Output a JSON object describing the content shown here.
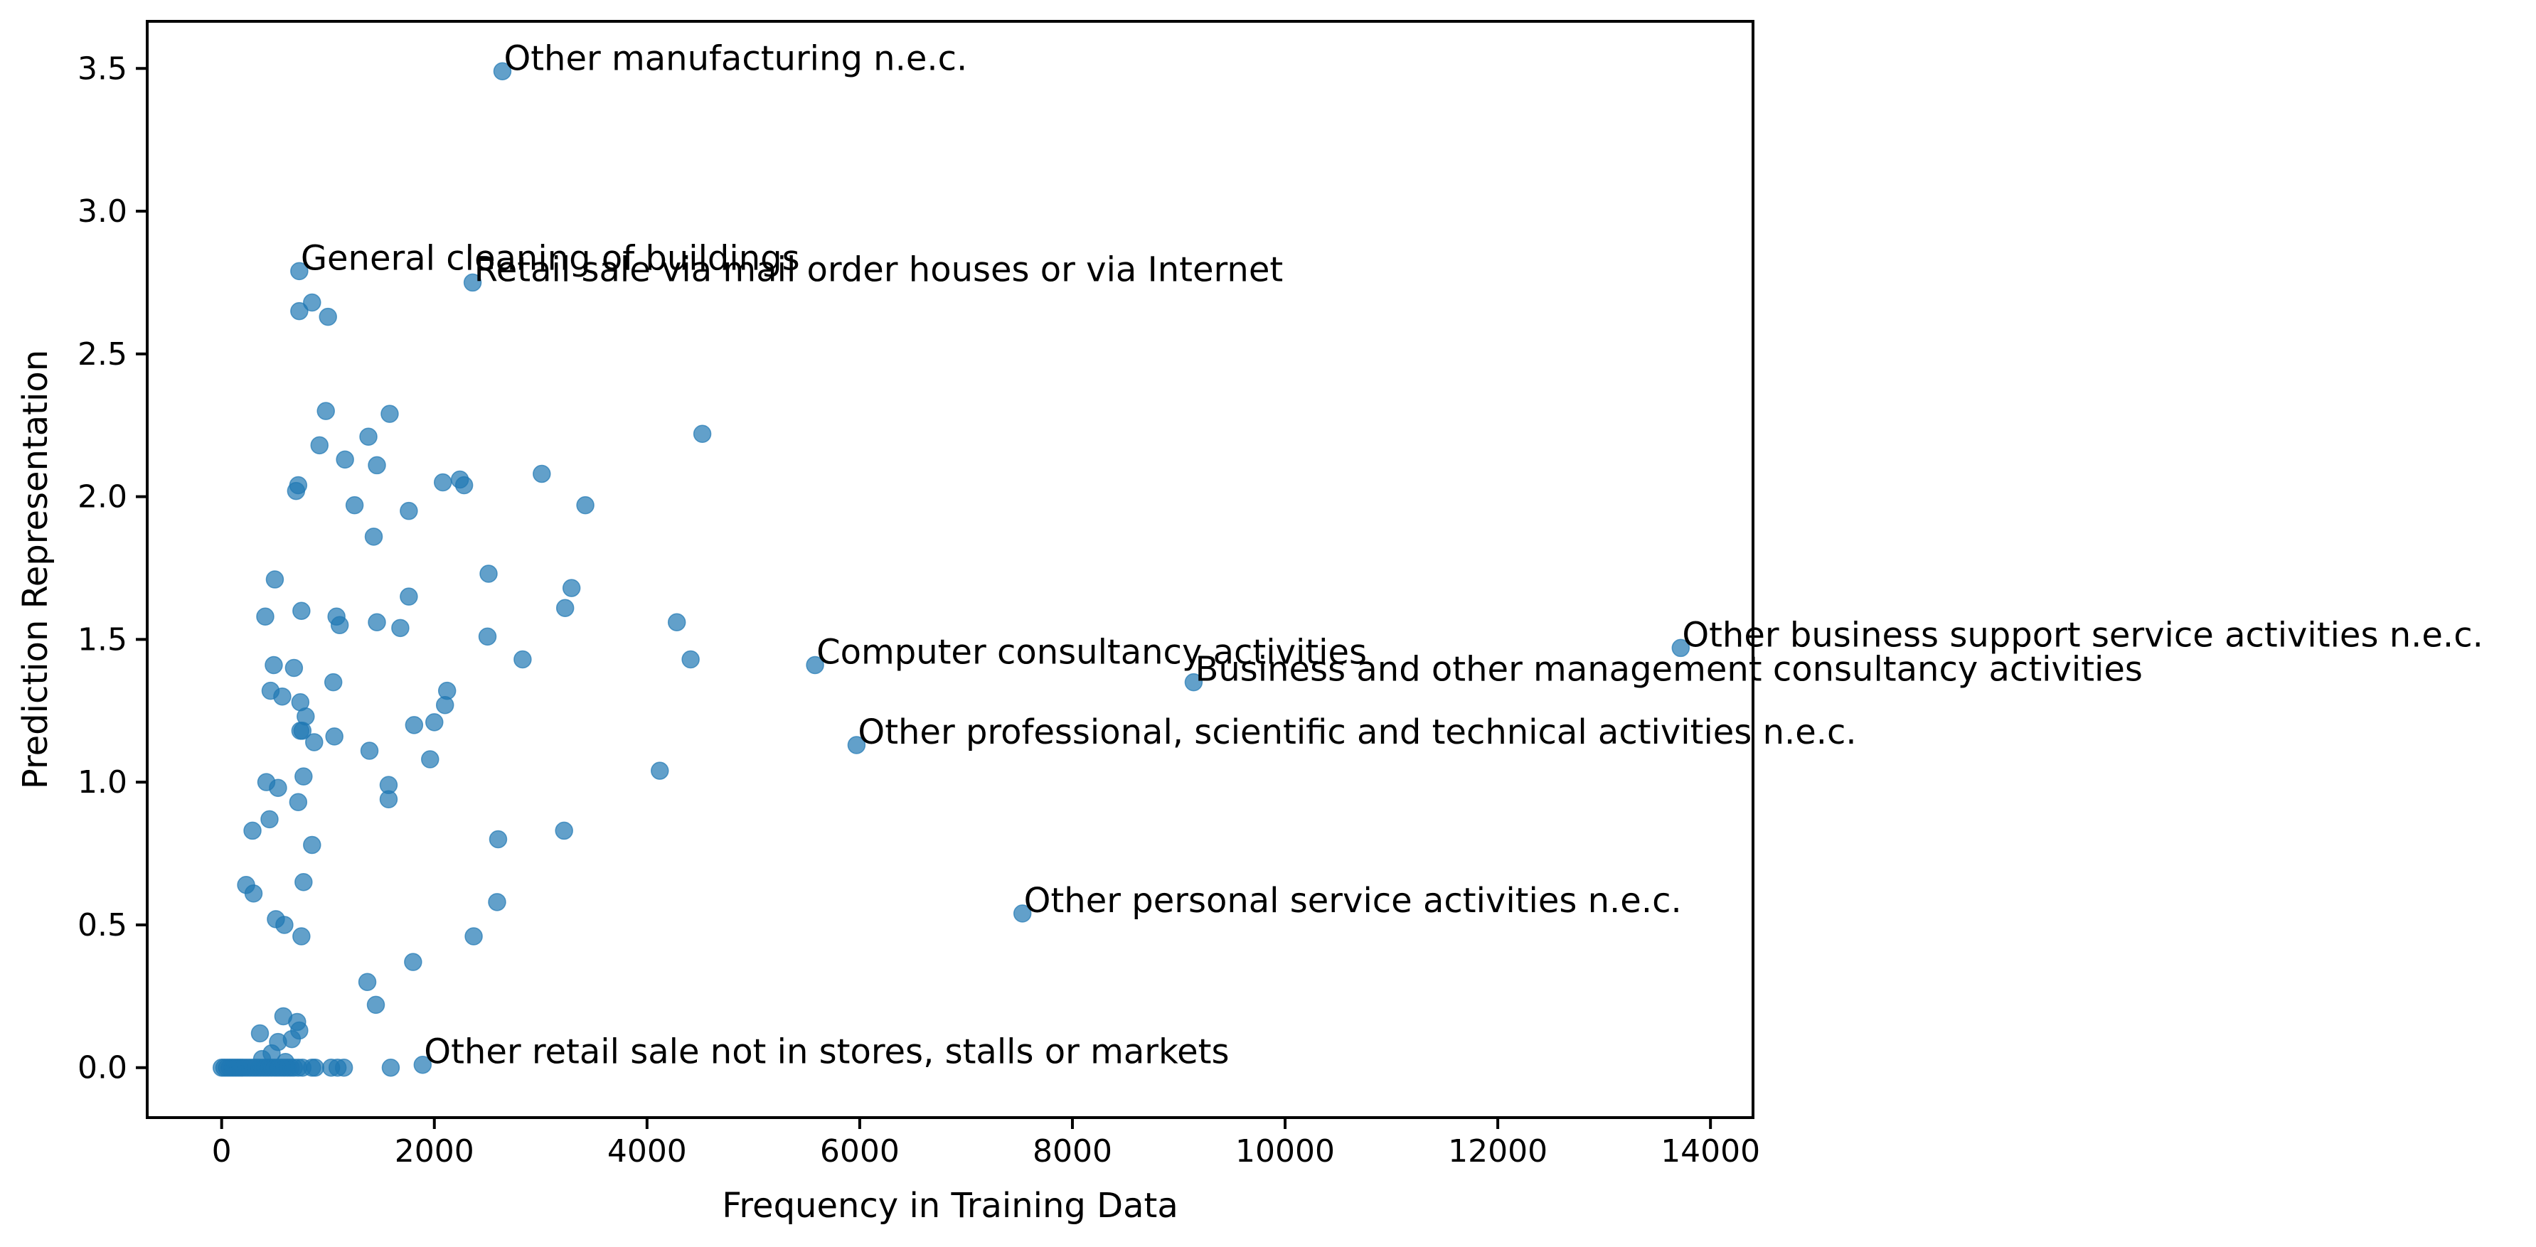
{
  "chart_data": {
    "type": "scatter",
    "title": "",
    "xlabel": "Frequency in Training Data",
    "ylabel": "Prediction Representation",
    "xlim": [
      -700,
      14400
    ],
    "ylim": [
      -0.175,
      3.665
    ],
    "xticks": [
      0,
      2000,
      4000,
      6000,
      8000,
      10000,
      12000,
      14000
    ],
    "yticks": [
      0.0,
      0.5,
      1.0,
      1.5,
      2.0,
      2.5,
      3.0,
      3.5
    ],
    "xtick_labels": [
      "0",
      "2000",
      "4000",
      "6000",
      "8000",
      "10000",
      "12000",
      "14000"
    ],
    "ytick_labels": [
      "0.0",
      "0.5",
      "1.0",
      "1.5",
      "2.0",
      "2.5",
      "3.0",
      "3.5"
    ],
    "grid": false,
    "point_color": "#1f77b4",
    "point_alpha": 0.7,
    "points": [
      {
        "x": 2640,
        "y": 3.49
      },
      {
        "x": 730,
        "y": 2.79
      },
      {
        "x": 2360,
        "y": 2.75
      },
      {
        "x": 850,
        "y": 2.68
      },
      {
        "x": 730,
        "y": 2.65
      },
      {
        "x": 1000,
        "y": 2.63
      },
      {
        "x": 980,
        "y": 2.3
      },
      {
        "x": 1580,
        "y": 2.29
      },
      {
        "x": 4520,
        "y": 2.22
      },
      {
        "x": 1380,
        "y": 2.21
      },
      {
        "x": 920,
        "y": 2.18
      },
      {
        "x": 1160,
        "y": 2.13
      },
      {
        "x": 1460,
        "y": 2.11
      },
      {
        "x": 3010,
        "y": 2.08
      },
      {
        "x": 2080,
        "y": 2.05
      },
      {
        "x": 2240,
        "y": 2.06
      },
      {
        "x": 2280,
        "y": 2.04
      },
      {
        "x": 720,
        "y": 2.04
      },
      {
        "x": 700,
        "y": 2.02
      },
      {
        "x": 1250,
        "y": 1.97
      },
      {
        "x": 3420,
        "y": 1.97
      },
      {
        "x": 1760,
        "y": 1.95
      },
      {
        "x": 1430,
        "y": 1.86
      },
      {
        "x": 2510,
        "y": 1.73
      },
      {
        "x": 500,
        "y": 1.71
      },
      {
        "x": 3290,
        "y": 1.68
      },
      {
        "x": 1760,
        "y": 1.65
      },
      {
        "x": 3230,
        "y": 1.61
      },
      {
        "x": 750,
        "y": 1.6
      },
      {
        "x": 410,
        "y": 1.58
      },
      {
        "x": 1080,
        "y": 1.58
      },
      {
        "x": 1460,
        "y": 1.56
      },
      {
        "x": 4280,
        "y": 1.56
      },
      {
        "x": 1680,
        "y": 1.54
      },
      {
        "x": 1110,
        "y": 1.55
      },
      {
        "x": 2500,
        "y": 1.51
      },
      {
        "x": 13720,
        "y": 1.47
      },
      {
        "x": 2830,
        "y": 1.43
      },
      {
        "x": 4410,
        "y": 1.43
      },
      {
        "x": 5580,
        "y": 1.41
      },
      {
        "x": 490,
        "y": 1.41
      },
      {
        "x": 680,
        "y": 1.4
      },
      {
        "x": 9140,
        "y": 1.35
      },
      {
        "x": 1050,
        "y": 1.35
      },
      {
        "x": 2120,
        "y": 1.32
      },
      {
        "x": 460,
        "y": 1.32
      },
      {
        "x": 570,
        "y": 1.3
      },
      {
        "x": 740,
        "y": 1.28
      },
      {
        "x": 2100,
        "y": 1.27
      },
      {
        "x": 790,
        "y": 1.23
      },
      {
        "x": 1810,
        "y": 1.2
      },
      {
        "x": 2000,
        "y": 1.21
      },
      {
        "x": 740,
        "y": 1.18
      },
      {
        "x": 760,
        "y": 1.18
      },
      {
        "x": 1060,
        "y": 1.16
      },
      {
        "x": 870,
        "y": 1.14
      },
      {
        "x": 5970,
        "y": 1.13
      },
      {
        "x": 1390,
        "y": 1.11
      },
      {
        "x": 1960,
        "y": 1.08
      },
      {
        "x": 4120,
        "y": 1.04
      },
      {
        "x": 770,
        "y": 1.02
      },
      {
        "x": 420,
        "y": 1.0
      },
      {
        "x": 1570,
        "y": 0.99
      },
      {
        "x": 530,
        "y": 0.98
      },
      {
        "x": 1570,
        "y": 0.94
      },
      {
        "x": 720,
        "y": 0.93
      },
      {
        "x": 450,
        "y": 0.87
      },
      {
        "x": 290,
        "y": 0.83
      },
      {
        "x": 3220,
        "y": 0.83
      },
      {
        "x": 2600,
        "y": 0.8
      },
      {
        "x": 850,
        "y": 0.78
      },
      {
        "x": 770,
        "y": 0.65
      },
      {
        "x": 230,
        "y": 0.64
      },
      {
        "x": 300,
        "y": 0.61
      },
      {
        "x": 2590,
        "y": 0.58
      },
      {
        "x": 7530,
        "y": 0.54
      },
      {
        "x": 510,
        "y": 0.52
      },
      {
        "x": 590,
        "y": 0.5
      },
      {
        "x": 750,
        "y": 0.46
      },
      {
        "x": 2370,
        "y": 0.46
      },
      {
        "x": 1800,
        "y": 0.37
      },
      {
        "x": 1370,
        "y": 0.3
      },
      {
        "x": 1450,
        "y": 0.22
      },
      {
        "x": 580,
        "y": 0.18
      },
      {
        "x": 710,
        "y": 0.16
      },
      {
        "x": 730,
        "y": 0.13
      },
      {
        "x": 360,
        "y": 0.12
      },
      {
        "x": 660,
        "y": 0.1
      },
      {
        "x": 530,
        "y": 0.09
      },
      {
        "x": 470,
        "y": 0.05
      },
      {
        "x": 380,
        "y": 0.03
      },
      {
        "x": 600,
        "y": 0.02
      },
      {
        "x": 1890,
        "y": 0.01
      },
      {
        "x": 0,
        "y": 0
      },
      {
        "x": 25,
        "y": 0
      },
      {
        "x": 50,
        "y": 0
      },
      {
        "x": 75,
        "y": 0
      },
      {
        "x": 100,
        "y": 0
      },
      {
        "x": 125,
        "y": 0
      },
      {
        "x": 150,
        "y": 0
      },
      {
        "x": 175,
        "y": 0
      },
      {
        "x": 200,
        "y": 0
      },
      {
        "x": 230,
        "y": 0
      },
      {
        "x": 260,
        "y": 0
      },
      {
        "x": 290,
        "y": 0
      },
      {
        "x": 320,
        "y": 0
      },
      {
        "x": 350,
        "y": 0
      },
      {
        "x": 380,
        "y": 0
      },
      {
        "x": 410,
        "y": 0
      },
      {
        "x": 440,
        "y": 0
      },
      {
        "x": 470,
        "y": 0
      },
      {
        "x": 500,
        "y": 0
      },
      {
        "x": 530,
        "y": 0
      },
      {
        "x": 560,
        "y": 0
      },
      {
        "x": 590,
        "y": 0
      },
      {
        "x": 620,
        "y": 0
      },
      {
        "x": 650,
        "y": 0
      },
      {
        "x": 680,
        "y": 0
      },
      {
        "x": 720,
        "y": 0
      },
      {
        "x": 760,
        "y": 0
      },
      {
        "x": 850,
        "y": 0
      },
      {
        "x": 880,
        "y": 0
      },
      {
        "x": 1030,
        "y": 0
      },
      {
        "x": 1090,
        "y": 0
      },
      {
        "x": 1150,
        "y": 0
      },
      {
        "x": 1590,
        "y": 0
      }
    ],
    "annotations": [
      {
        "text": "Other manufacturing n.e.c.",
        "x": 2640,
        "y": 3.49
      },
      {
        "text": "General cleaning of buildings",
        "x": 730,
        "y": 2.79
      },
      {
        "text": "Retail sale via mail order houses or via Internet",
        "x": 2360,
        "y": 2.75
      },
      {
        "text": "Other business support service activities n.e.c.",
        "x": 13720,
        "y": 1.47
      },
      {
        "text": "Computer consultancy activities",
        "x": 5580,
        "y": 1.41
      },
      {
        "text": "Business and other management consultancy activities",
        "x": 9140,
        "y": 1.35
      },
      {
        "text": "Other professional, scientific and technical activities n.e.c.",
        "x": 5970,
        "y": 1.13
      },
      {
        "text": "Other personal service activities n.e.c.",
        "x": 7530,
        "y": 0.54
      },
      {
        "text": "Other retail sale not in stores, stalls or markets",
        "x": 1890,
        "y": 0.01
      }
    ]
  }
}
